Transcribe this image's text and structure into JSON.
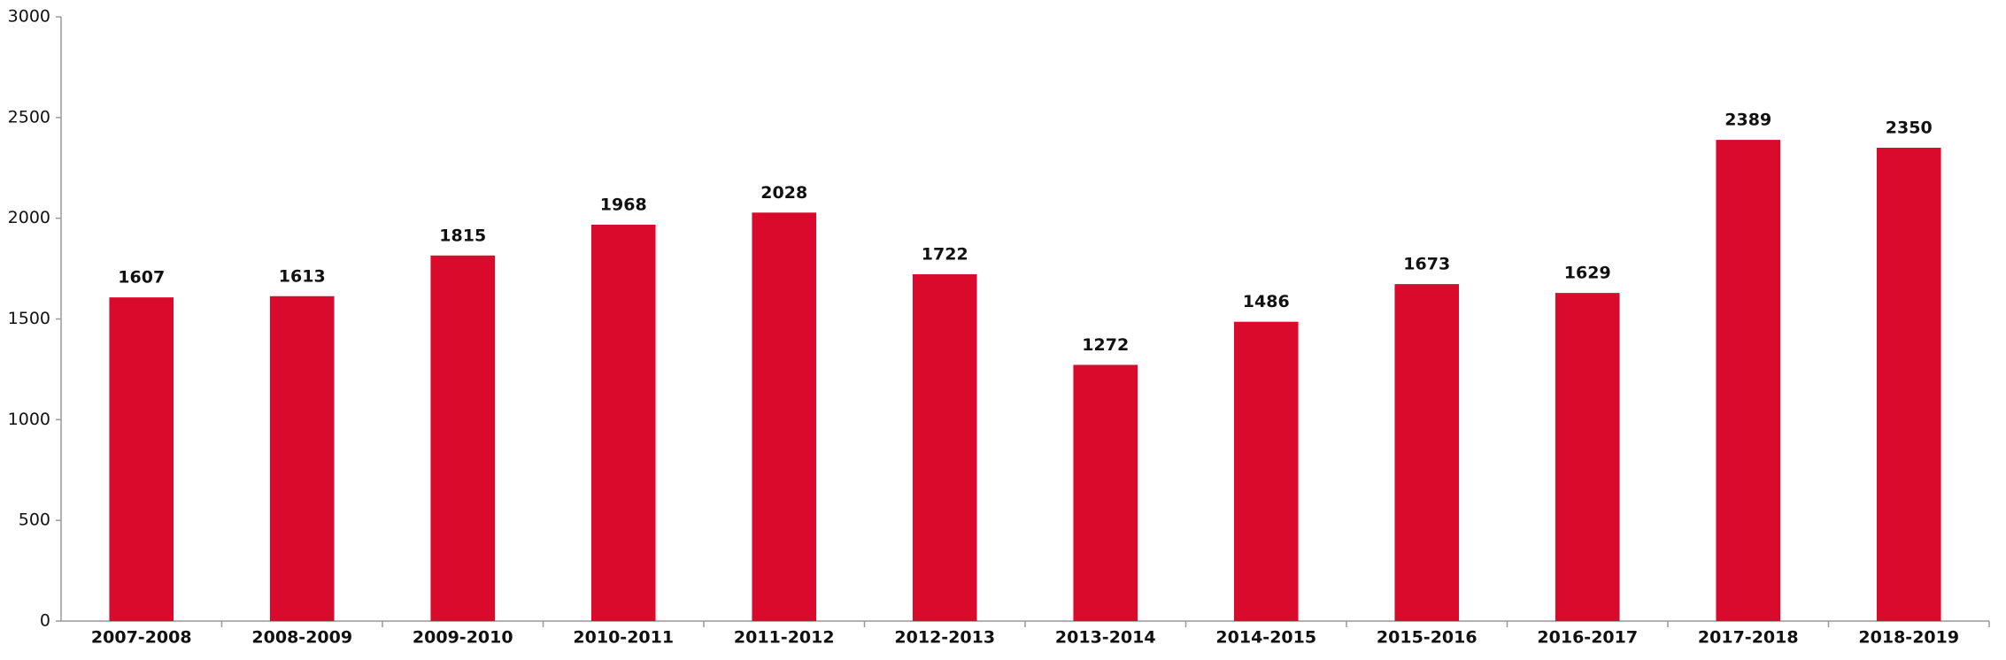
{
  "chart_data": {
    "type": "bar",
    "categories": [
      "2007-2008",
      "2008-2009",
      "2009-2010",
      "2010-2011",
      "2011-2012",
      "2012-2013",
      "2013-2014",
      "2014-2015",
      "2015-2016",
      "2016-2017",
      "2017-2018",
      "2018-2019"
    ],
    "values": [
      1607,
      1613,
      1815,
      1968,
      2028,
      1722,
      1272,
      1486,
      1673,
      1629,
      2389,
      2350
    ],
    "color": "#d90a2c",
    "ylim": [
      0,
      3000
    ],
    "yticks": [
      0,
      500,
      1000,
      1500,
      2000,
      2500,
      3000
    ],
    "grid": false
  }
}
